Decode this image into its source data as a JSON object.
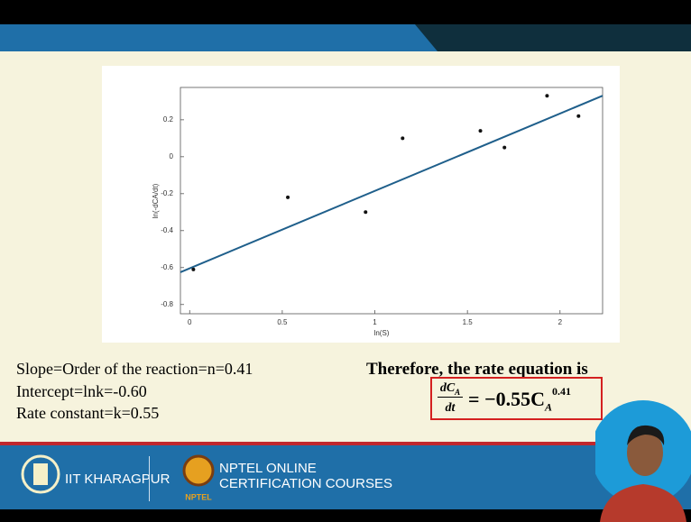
{
  "chart_data": {
    "type": "scatter",
    "x_label": "ln(S)",
    "y_label": "ln(-dCA/dt)",
    "x": [
      0.02,
      0.53,
      0.95,
      1.15,
      1.57,
      1.7,
      1.93,
      2.1
    ],
    "values": [
      -0.61,
      -0.22,
      -0.3,
      0.1,
      0.14,
      0.05,
      0.33,
      0.22
    ],
    "color": "#111111",
    "fit": {
      "x": [
        -0.05,
        2.23
      ],
      "values": [
        -0.625,
        0.33
      ],
      "color": "#1f5f8b"
    },
    "xlim": [
      -0.05,
      2.23
    ],
    "ylim": [
      -0.85,
      0.375
    ],
    "xticks": [
      0,
      0.5,
      1,
      1.5,
      2
    ],
    "yticks": [
      -0.8,
      -0.6,
      -0.4,
      -0.2,
      0,
      0.2
    ]
  },
  "results": [
    "Slope=Order of the  reaction=n=0.41",
    "Intercept=lnk=-0.60",
    "Rate constant=k=0.55"
  ],
  "conclusion": "Therefore, the rate equation is",
  "equation": {
    "numerator": "dC",
    "numerator_sub": "A",
    "denominator": "dt",
    "rhs": "= −0.55C",
    "rhs_sub": "A",
    "rhs_sup": "0.41"
  },
  "footer": {
    "institute": "IIT KHARAGPUR",
    "nptel_line1": "NPTEL ONLINE",
    "nptel_line2": "CERTIFICATION COURSES",
    "logo_text": "NPTEL"
  }
}
